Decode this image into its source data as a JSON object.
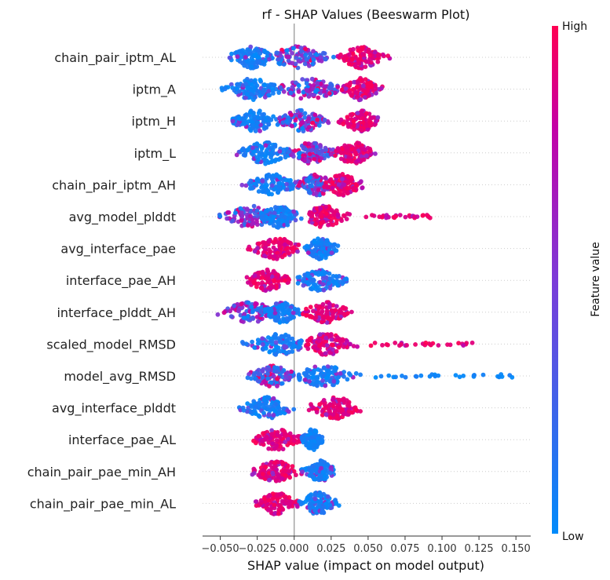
{
  "chart_data": {
    "type": "scatter",
    "subtype": "beeswarm",
    "title": "rf - SHAP Values (Beeswarm Plot)",
    "xlabel": "SHAP value (impact on model output)",
    "xlim": [
      -0.062,
      0.16
    ],
    "xticks": [
      -0.05,
      -0.025,
      0.0,
      0.025,
      0.05,
      0.075,
      0.1,
      0.125,
      0.15
    ],
    "xtick_labels": [
      "−0.050",
      "−0.025",
      "0.000",
      "0.025",
      "0.050",
      "0.075",
      "0.100",
      "0.125",
      "0.150"
    ],
    "zero_line": true,
    "colorbar": {
      "label": "Feature value",
      "high_label": "High",
      "low_label": "Low",
      "low_color": "#008bfb",
      "high_color": "#ff0052"
    },
    "features": [
      {
        "name": "chain_pair_iptm_AL",
        "min": -0.048,
        "max": 0.07,
        "clusters": [
          [
            -0.028,
            -0.045,
            -0.012,
            "low"
          ],
          [
            0.002,
            -0.012,
            0.035,
            "mix"
          ],
          [
            0.045,
            0.03,
            0.065,
            "high"
          ]
        ]
      },
      {
        "name": "iptm_A",
        "min": -0.052,
        "max": 0.06,
        "clusters": [
          [
            -0.028,
            -0.05,
            -0.008,
            "low"
          ],
          [
            0.01,
            -0.01,
            0.035,
            "mix"
          ],
          [
            0.045,
            0.032,
            0.06,
            "high"
          ]
        ]
      },
      {
        "name": "iptm_H",
        "min": -0.042,
        "max": 0.057,
        "clusters": [
          [
            -0.026,
            -0.042,
            -0.008,
            "low"
          ],
          [
            0.005,
            -0.01,
            0.03,
            "mix"
          ],
          [
            0.045,
            0.03,
            0.057,
            "high"
          ]
        ]
      },
      {
        "name": "iptm_L",
        "min": -0.04,
        "max": 0.058,
        "clusters": [
          [
            -0.02,
            -0.04,
            -0.002,
            "low"
          ],
          [
            0.012,
            -0.004,
            0.03,
            "mix"
          ],
          [
            0.04,
            0.028,
            0.058,
            "high"
          ]
        ]
      },
      {
        "name": "chain_pair_iptm_AH",
        "min": -0.036,
        "max": 0.048,
        "clusters": [
          [
            -0.015,
            -0.036,
            0.0,
            "low"
          ],
          [
            0.015,
            0.0,
            0.03,
            "mix"
          ],
          [
            0.033,
            0.02,
            0.048,
            "high"
          ]
        ]
      },
      {
        "name": "avg_model_plddt",
        "min": -0.052,
        "max": 0.095,
        "clusters": [
          [
            -0.03,
            -0.052,
            -0.01,
            "mixlow"
          ],
          [
            -0.01,
            -0.025,
            0.005,
            "low"
          ],
          [
            0.02,
            0.01,
            0.045,
            "high"
          ],
          [
            0.065,
            0.048,
            0.095,
            "highsparse"
          ]
        ]
      },
      {
        "name": "avg_interface_pae",
        "min": -0.033,
        "max": 0.03,
        "clusters": [
          [
            -0.012,
            -0.033,
            0.005,
            "high"
          ],
          [
            0.018,
            0.005,
            0.03,
            "low"
          ]
        ]
      },
      {
        "name": "interface_pae_AH",
        "min": -0.032,
        "max": 0.04,
        "clusters": [
          [
            -0.018,
            -0.032,
            -0.002,
            "high"
          ],
          [
            0.018,
            0.002,
            0.04,
            "low"
          ]
        ]
      },
      {
        "name": "interface_plddt_AH",
        "min": -0.052,
        "max": 0.04,
        "clusters": [
          [
            -0.03,
            -0.052,
            -0.012,
            "mixlow"
          ],
          [
            -0.008,
            -0.02,
            0.005,
            "low"
          ],
          [
            0.022,
            0.005,
            0.04,
            "high"
          ]
        ]
      },
      {
        "name": "scaled_model_RMSD",
        "min": -0.038,
        "max": 0.133,
        "clusters": [
          [
            -0.01,
            -0.038,
            0.005,
            "low"
          ],
          [
            0.022,
            0.008,
            0.045,
            "high"
          ],
          [
            0.08,
            0.048,
            0.133,
            "highsparse"
          ]
        ]
      },
      {
        "name": "model_avg_RMSD",
        "min": -0.034,
        "max": 0.15,
        "clusters": [
          [
            -0.015,
            -0.034,
            0.0,
            "mix"
          ],
          [
            0.02,
            0.002,
            0.045,
            "low"
          ],
          [
            0.1,
            0.05,
            0.15,
            "lowsparse"
          ]
        ]
      },
      {
        "name": "avg_interface_plddt",
        "min": -0.038,
        "max": 0.046,
        "clusters": [
          [
            -0.018,
            -0.038,
            0.0,
            "low"
          ],
          [
            0.028,
            0.008,
            0.046,
            "high"
          ]
        ]
      },
      {
        "name": "interface_pae_AL",
        "min": -0.03,
        "max": 0.02,
        "clusters": [
          [
            -0.012,
            -0.03,
            0.005,
            "high"
          ],
          [
            0.012,
            0.005,
            0.02,
            "low"
          ]
        ]
      },
      {
        "name": "chain_pair_pae_min_AH",
        "min": -0.03,
        "max": 0.027,
        "clusters": [
          [
            -0.012,
            -0.03,
            0.005,
            "high"
          ],
          [
            0.018,
            0.005,
            0.027,
            "low"
          ]
        ]
      },
      {
        "name": "chain_pair_pae_min_AL",
        "min": -0.027,
        "max": 0.031,
        "clusters": [
          [
            -0.012,
            -0.027,
            0.003,
            "high"
          ],
          [
            0.016,
            0.003,
            0.031,
            "low"
          ]
        ]
      }
    ]
  }
}
